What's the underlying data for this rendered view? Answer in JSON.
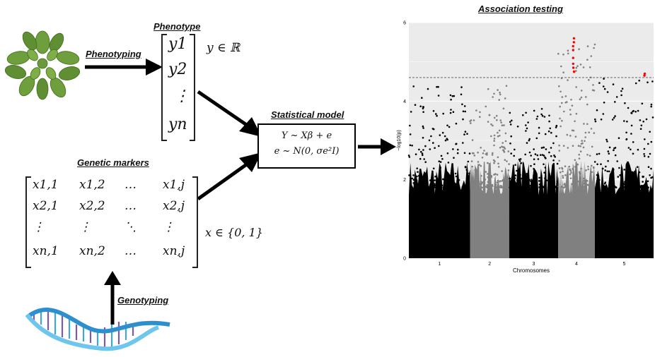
{
  "phenotype": {
    "title": "Phenotype",
    "entries": [
      "y1",
      "y2",
      "⋮",
      "yn"
    ],
    "domain": "y ∈ ℝ"
  },
  "phenotyping_label": "Phenotyping",
  "genetic_markers": {
    "title": "Genetic markers",
    "rows": [
      [
        "x1,1",
        "x1,2",
        "…",
        "x1,j"
      ],
      [
        "x2,1",
        "x2,2",
        "…",
        "x2,j"
      ],
      [
        "⋮",
        "⋮",
        "⋱",
        "⋮"
      ],
      [
        "xn,1",
        "xn,2",
        "…",
        "xn,j"
      ]
    ],
    "domain": "x ∈ {0, 1}"
  },
  "genotyping_label": "Genotyping",
  "statistical_model": {
    "title": "Statistical model",
    "line1": "Y ~ Xβ + e",
    "line2": "e ~ N(0, σe²I)"
  },
  "association": {
    "title": "Association testing"
  },
  "chart_data": {
    "type": "scatter",
    "title": "Association testing",
    "xlabel": "Chromosomes",
    "ylabel": "−log10(p)",
    "ylim": [
      0,
      6
    ],
    "y_ticks": [
      "0",
      "2",
      "4",
      "6"
    ],
    "x_tick_labels": [
      "1",
      "2",
      "3",
      "4",
      "5"
    ],
    "threshold": 4.6,
    "grid": true,
    "colors": {
      "odd_chromosome": "#000000",
      "even_chromosome": "#808080",
      "significant": "#ff0000",
      "panel": "#ebebeb",
      "threshold_line": "#555555"
    },
    "series": [
      {
        "name": "1",
        "peak": 4.5,
        "significant": []
      },
      {
        "name": "2",
        "peak": 4.5,
        "significant": []
      },
      {
        "name": "3",
        "peak": 4.0,
        "significant": []
      },
      {
        "name": "4",
        "peak": 5.6,
        "significant": [
          5.6,
          5.5,
          5.4,
          5.3,
          5.1,
          4.95,
          4.85,
          4.75
        ]
      },
      {
        "name": "5",
        "peak": 4.7,
        "significant": [
          4.7,
          4.65
        ]
      }
    ]
  }
}
